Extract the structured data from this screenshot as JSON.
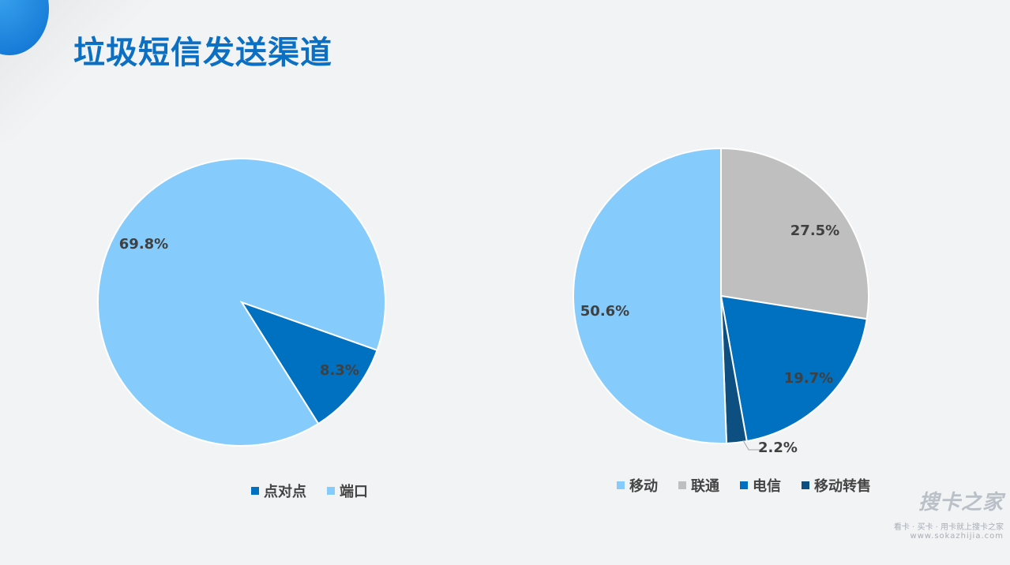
{
  "page": {
    "title": "垃圾短信发送渠道"
  },
  "watermark": {
    "logo": "搜卡之家",
    "tagline": "看卡 · 买卡 · 用卡就上搜卡之家",
    "url": "www.sokazhijia.com"
  },
  "chart_data": [
    {
      "type": "pie",
      "labels": [
        "点对点",
        "端口"
      ],
      "slices": [
        {
          "name": "点对点",
          "display": "8.3%",
          "value": 8.3,
          "color": "#0070c0"
        },
        {
          "name": "端口",
          "display": "69.8%",
          "value": 69.8,
          "color": "#85cbfb"
        }
      ],
      "legend": [
        "点对点",
        "端口"
      ],
      "legend_position": "bottom"
    },
    {
      "type": "pie",
      "slices": [
        {
          "name": "联通",
          "display": "27.5%",
          "value": 27.5,
          "color": "#bfbfbf"
        },
        {
          "name": "电信",
          "display": "19.7%",
          "value": 19.7,
          "color": "#0070c0"
        },
        {
          "name": "移动转售",
          "display": "2.2%",
          "value": 2.2,
          "color": "#0d4f80"
        },
        {
          "name": "移动",
          "display": "50.6%",
          "value": 50.6,
          "color": "#85cbfb"
        }
      ],
      "legend": [
        "移动",
        "联通",
        "电信",
        "移动转售"
      ],
      "legend_position": "bottom"
    }
  ]
}
